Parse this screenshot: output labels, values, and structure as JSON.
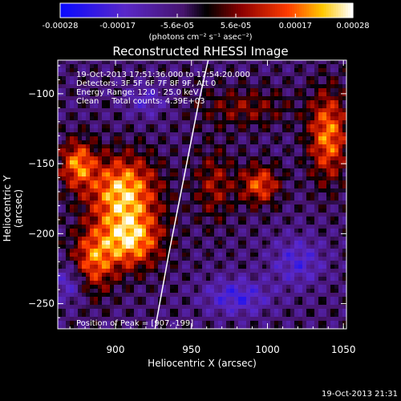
{
  "chart_data": {
    "type": "heatmap",
    "title": "Reconstructed RHESSI Image",
    "xlabel": "Heliocentric X (arcsec)",
    "ylabel": "Heliocentric Y (arcsec)",
    "xlim": [
      862,
      1052
    ],
    "ylim": [
      -268,
      -76
    ],
    "xticks": [
      900,
      950,
      1000,
      1050
    ],
    "yticks": [
      -100,
      -150,
      -200,
      -250
    ],
    "colorbar": {
      "ticks": [
        "-0.00028",
        "-0.00017",
        "-5.6e-05",
        "5.6e-05",
        "0.00017",
        "0.00028"
      ],
      "tick_values": [
        -0.00028,
        -0.00017,
        -5.6e-05,
        5.6e-05,
        0.00017,
        0.00028
      ],
      "range": [
        -0.00028,
        0.00028
      ],
      "unit": "(photons cm⁻² s⁻¹ asec⁻²)"
    },
    "annotations": [
      "19-Oct-2013 17:51:36.000 to 17:54:20.000",
      "Detectors: 3F 5F 6F 7F 8F 9F, Att 0",
      "Energy Range: 12.0 - 25.0 keV",
      "Clean     Total counts: 4.39E+03",
      "Position of Peak = [907,-199]"
    ],
    "limb_curve": {
      "x": [
        926,
        935,
        945,
        955,
        961
      ],
      "y": [
        -268,
        -215,
        -160,
        -105,
        -76
      ]
    },
    "sources": [
      {
        "x": 905,
        "y": -170,
        "value": 0.00028,
        "sx": 16,
        "sy": 18
      },
      {
        "x": 910,
        "y": -205,
        "value": 0.00026,
        "sx": 14,
        "sy": 14
      },
      {
        "x": 885,
        "y": -220,
        "value": 0.0002,
        "sx": 10,
        "sy": 16
      },
      {
        "x": 875,
        "y": -150,
        "value": 0.00022,
        "sx": 8,
        "sy": 12
      },
      {
        "x": 1040,
        "y": -130,
        "value": 0.00023,
        "sx": 9,
        "sy": 22
      },
      {
        "x": 995,
        "y": -165,
        "value": 0.0002,
        "sx": 9,
        "sy": 10
      },
      {
        "x": 965,
        "y": -165,
        "value": 0.00012,
        "sx": 9,
        "sy": 18
      },
      {
        "x": 985,
        "y": -110,
        "value": 0.0001,
        "sx": 22,
        "sy": 10
      },
      {
        "x": 920,
        "y": -105,
        "value": -0.0001,
        "sx": 9,
        "sy": 8
      },
      {
        "x": 1020,
        "y": -220,
        "value": -0.00012,
        "sx": 12,
        "sy": 12
      },
      {
        "x": 980,
        "y": -245,
        "value": -0.00014,
        "sx": 15,
        "sy": 9
      },
      {
        "x": 870,
        "y": -235,
        "value": -0.00012,
        "sx": 8,
        "sy": 10
      }
    ]
  },
  "footer": {
    "timestamp": "19-Oct-2013 21:31"
  }
}
